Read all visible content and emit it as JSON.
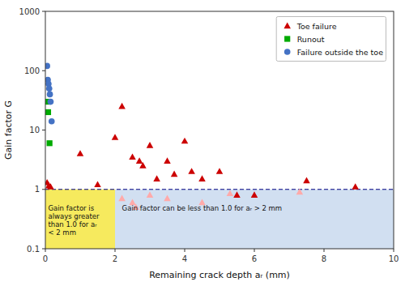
{
  "chart_data": {
    "type": "scatter",
    "xlabel": "Remaining crack depth aᵣ (mm)",
    "ylabel": "Gain factor G",
    "log": "y",
    "xlim": [
      0,
      10
    ],
    "ylim": [
      0.1,
      1000
    ],
    "xticks": [
      0,
      2,
      4,
      6,
      8,
      10
    ],
    "yticks": [
      0.1,
      1,
      10,
      100,
      1000
    ],
    "grid": false,
    "legend": "upper right",
    "regions": [
      {
        "x": [
          0,
          2
        ],
        "y": [
          0.1,
          1.0
        ],
        "color": "#f5e642"
      },
      {
        "x": [
          2,
          10
        ],
        "y": [
          0.1,
          1.0
        ],
        "color": "#c9d9ef"
      }
    ],
    "hlines": [
      {
        "y": 1.0,
        "color": "navy",
        "line_style": "dashed"
      }
    ],
    "series": [
      {
        "name": "Toe failure",
        "color": "#cc0000",
        "marker": "triangle",
        "x": [
          0.05,
          0.1,
          0.15,
          1.0,
          1.5,
          2.0,
          2.2,
          2.5,
          2.7,
          2.8,
          3.0,
          3.2,
          3.5,
          3.7,
          4.0,
          4.2,
          4.5,
          5.0,
          5.5,
          6.0,
          7.5,
          8.9
        ],
        "values": [
          1.3,
          1.15,
          1.1,
          4.0,
          1.2,
          7.5,
          25.0,
          3.5,
          3.0,
          2.5,
          5.5,
          1.5,
          3.0,
          1.8,
          6.5,
          2.0,
          1.5,
          2.0,
          0.8,
          0.8,
          1.4,
          1.1
        ]
      },
      {
        "color": "#ffaaaa",
        "marker": "triangle",
        "x": [
          2.2,
          2.5,
          2.6,
          3.0,
          3.5,
          4.5,
          5.3,
          7.3
        ],
        "values": [
          0.7,
          0.6,
          0.5,
          0.8,
          0.7,
          0.6,
          0.85,
          0.9
        ]
      },
      {
        "name": "Runout",
        "color": "#00aa00",
        "marker": "square",
        "x": [
          0.05,
          0.08,
          0.12
        ],
        "values": [
          30.0,
          20.0,
          6.0
        ]
      },
      {
        "name": "Failure outside the toe",
        "color": "#4472c4",
        "marker": "circle",
        "x": [
          0.05,
          0.07,
          0.09,
          0.11,
          0.13,
          0.15,
          0.18
        ],
        "values": [
          120.0,
          70.0,
          60.0,
          50.0,
          40.0,
          30.0,
          14.0
        ]
      }
    ],
    "annotations": [
      {
        "text": "Gain factor is\nalways greater\nthan 1.0 for aᵣ\n< 2 mm",
        "x": 0.08,
        "y": 0.55
      },
      {
        "text": "Gain factor can be less than 1.0 for aᵣ > 2 mm",
        "x": 2.2,
        "y": 0.55
      }
    ]
  }
}
